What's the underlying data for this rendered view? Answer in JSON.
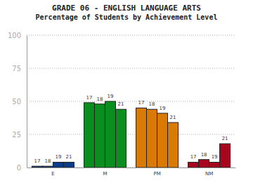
{
  "chart_data": {
    "type": "bar",
    "title": "GRADE 06 - ENGLISH LANGUAGE ARTS",
    "subtitle": "Percentage of Students by Achievement Level",
    "categories": [
      "E",
      "M",
      "PM",
      "NM"
    ],
    "series": [
      {
        "name": "17",
        "values": [
          1,
          49,
          45,
          4
        ]
      },
      {
        "name": "18",
        "values": [
          1,
          48,
          44,
          6
        ]
      },
      {
        "name": "19",
        "values": [
          4,
          50,
          41,
          4
        ]
      },
      {
        "name": "21",
        "values": [
          4,
          44,
          34,
          18
        ]
      }
    ],
    "colors": [
      "#0b3c8c",
      "#0a8f1f",
      "#d97a06",
      "#a8061f"
    ],
    "ylim": [
      0,
      100
    ],
    "yticks": [
      0,
      25,
      50,
      75,
      100
    ],
    "grid": true
  }
}
